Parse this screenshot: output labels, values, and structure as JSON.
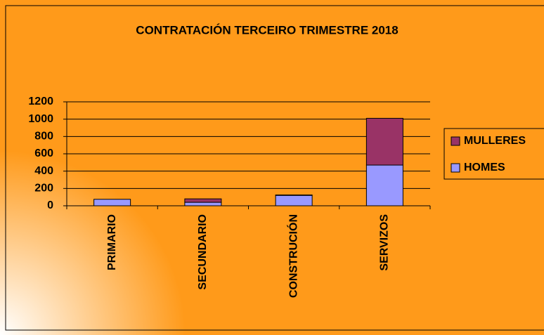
{
  "chart_data": {
    "type": "stacked_bar",
    "title": "CONTRATACIÓN TERCEIRO TRIMESTRE 2018",
    "categories": [
      "PRIMARIO",
      "SECUNDARIO",
      "CONSTRUCIÓN",
      "SERVIZOS"
    ],
    "series": [
      {
        "name": "HOMES",
        "color": "#9999ff",
        "values": [
          75,
          40,
          120,
          470
        ]
      },
      {
        "name": "MULLERES",
        "color": "#993366",
        "values": [
          0,
          40,
          5,
          540
        ]
      }
    ],
    "ylim": [
      0,
      1200
    ],
    "yticks": [
      0,
      200,
      400,
      600,
      800,
      1000,
      1200
    ],
    "grid": true,
    "legend": "right"
  }
}
